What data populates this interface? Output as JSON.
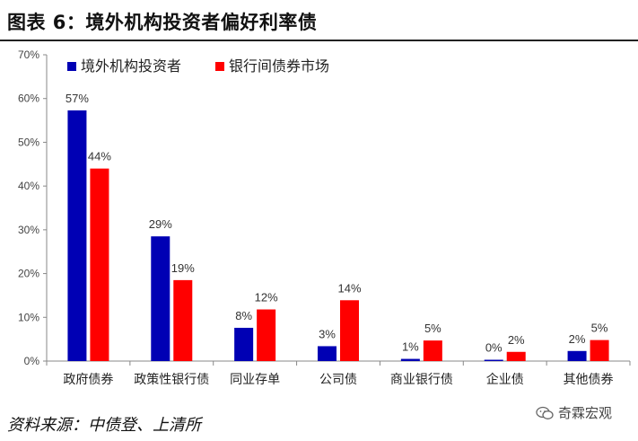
{
  "header": {
    "title": "图表 6：境外机构投资者偏好利率债"
  },
  "footer": {
    "source": "资料来源：中债登、上清所",
    "watermark": "奇霖宏观"
  },
  "icons": {
    "watermark": "wechat-icon"
  },
  "chart_data": {
    "type": "bar",
    "title": "",
    "xlabel": "",
    "ylabel": "",
    "ylim": [
      0,
      70
    ],
    "yticks": [
      "0%",
      "10%",
      "20%",
      "30%",
      "40%",
      "50%",
      "60%",
      "70%"
    ],
    "grid": false,
    "legend_position": "top-left",
    "categories": [
      "政府债券",
      "政策性银行债",
      "同业存单",
      "公司债",
      "商业银行债",
      "企业债",
      "其他债券"
    ],
    "series": [
      {
        "name": "境外机构投资者",
        "color": "#0000B4",
        "values": [
          57.3,
          28.5,
          7.6,
          3.4,
          0.5,
          0.3,
          2.3
        ],
        "labels": [
          "57%",
          "29%",
          "8%",
          "3%",
          "1%",
          "0%",
          "2%"
        ]
      },
      {
        "name": "银行间债券市场",
        "color": "#FF0000",
        "values": [
          44.0,
          18.5,
          11.8,
          13.9,
          4.7,
          2.1,
          4.8
        ],
        "labels": [
          "44%",
          "19%",
          "12%",
          "14%",
          "5%",
          "2%",
          "5%"
        ]
      }
    ]
  }
}
